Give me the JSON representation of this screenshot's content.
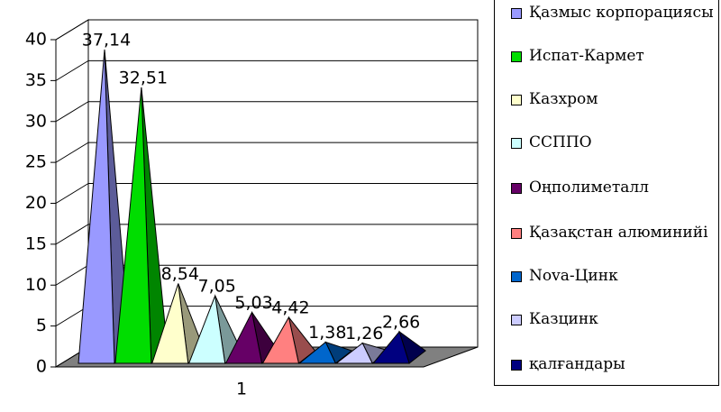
{
  "chart_data": {
    "type": "pyramid",
    "categories": [
      "1"
    ],
    "series": [
      {
        "name": "Қазмыс корпорациясы",
        "color": "#9999ff",
        "values": [
          37.14
        ],
        "value_labels": [
          "37,14"
        ]
      },
      {
        "name": "Испат-Кармет",
        "color": "#00dd00",
        "values": [
          32.51
        ],
        "value_labels": [
          "32,51"
        ]
      },
      {
        "name": "Казхром",
        "color": "#ffffcc",
        "values": [
          8.54
        ],
        "value_labels": [
          "8,54"
        ]
      },
      {
        "name": "ССППО",
        "color": "#ccffff",
        "values": [
          7.05
        ],
        "value_labels": [
          "7,05"
        ]
      },
      {
        "name": "Оңполиметалл",
        "color": "#660066",
        "values": [
          5.03
        ],
        "value_labels": [
          "5,03"
        ]
      },
      {
        "name": "Қазақстан алюминийі",
        "color": "#ff8080",
        "values": [
          4.42
        ],
        "value_labels": [
          "4,42"
        ]
      },
      {
        "name": "Nova-Цинк",
        "color": "#0066cc",
        "values": [
          1.38
        ],
        "value_labels": [
          "1,38"
        ]
      },
      {
        "name": "Казцинк",
        "color": "#ccccff",
        "values": [
          1.26
        ],
        "value_labels": [
          "1,26"
        ]
      },
      {
        "name": "қалғандары",
        "color": "#000080",
        "values": [
          2.66
        ],
        "value_labels": [
          "2,66"
        ]
      }
    ],
    "ylim": [
      0,
      40
    ],
    "yticks": [
      0,
      5,
      10,
      15,
      20,
      25,
      30,
      35,
      40
    ],
    "grid": true,
    "legend": "right"
  }
}
